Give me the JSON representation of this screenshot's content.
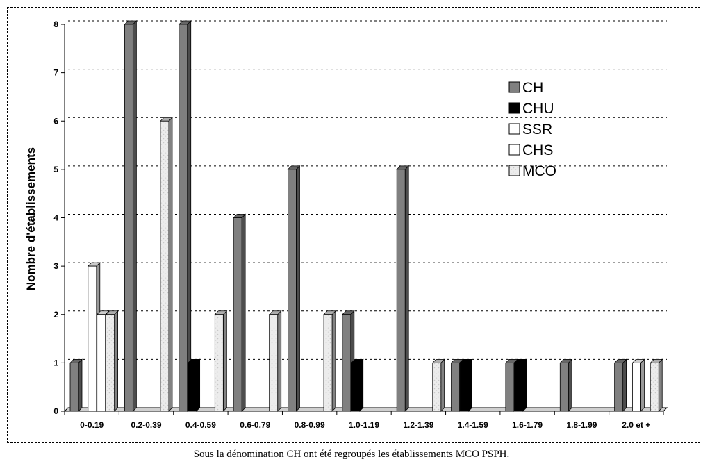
{
  "chart_data": {
    "type": "bar",
    "ylabel": "Nombre d'établissements",
    "xlabel": "",
    "ylim": [
      0,
      8
    ],
    "yticks": [
      0,
      1,
      2,
      3,
      4,
      5,
      6,
      7,
      8
    ],
    "grid": "horizontal dashed",
    "legend_placement": "top-right",
    "categories": [
      "0-0.19",
      "0.2-0.39",
      "0.4-0.59",
      "0.6-0.79",
      "0.8-0.99",
      "1.0-1.19",
      "1.2-1.39",
      "1.4-1.59",
      "1.6-1.79",
      "1.8-1.99",
      "2.0 et +"
    ],
    "series": [
      {
        "name": "CH",
        "color": "#808080",
        "values": [
          1,
          8,
          8,
          4,
          5,
          2,
          5,
          1,
          1,
          1,
          1
        ]
      },
      {
        "name": "CHU",
        "color": "#000000",
        "values": [
          0,
          0,
          1,
          0,
          0,
          1,
          0,
          1,
          1,
          0,
          0
        ]
      },
      {
        "name": "SSR",
        "color": "#ffffff",
        "values": [
          3,
          0,
          0,
          0,
          0,
          0,
          0,
          0,
          0,
          0,
          1
        ]
      },
      {
        "name": "CHS",
        "color": "#ffffff",
        "values": [
          2,
          0,
          0,
          0,
          0,
          0,
          0,
          0,
          0,
          0,
          0
        ]
      },
      {
        "name": "MCO",
        "color": "#e4e4e4",
        "values": [
          2,
          6,
          2,
          2,
          2,
          0,
          1,
          0,
          0,
          0,
          1
        ]
      }
    ]
  },
  "caption": "Sous la dénomination CH ont été regroupés les établissements MCO PSPH."
}
